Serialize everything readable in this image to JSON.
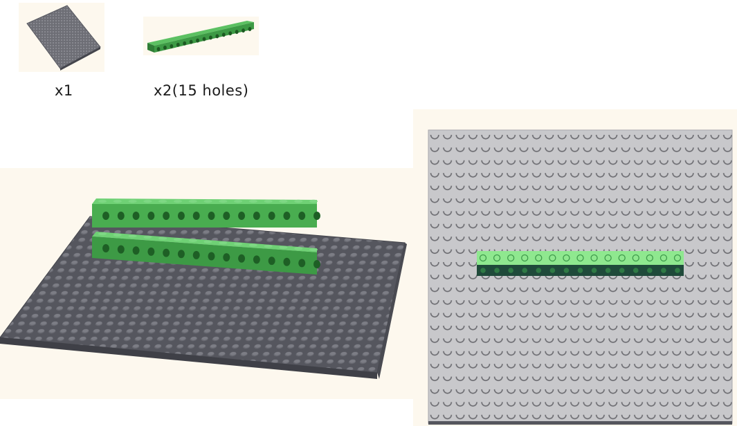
{
  "parts": [
    {
      "name": "baseplate",
      "quantity_label": "x1"
    },
    {
      "name": "technic-beam",
      "quantity_label": "x2(15 holes)"
    }
  ],
  "colors": {
    "panel_bg": "#fdf8ee",
    "baseplate_dark": "#55565e",
    "baseplate_light": "#c8c8cb",
    "beam_green": "#3d9a45",
    "beam_green_top": "#5cc062",
    "beam_light": "#8fe88f",
    "beam_dark": "#1f4a3a"
  },
  "assembly": {
    "beams_count": 2,
    "holes_per_beam": 15
  }
}
